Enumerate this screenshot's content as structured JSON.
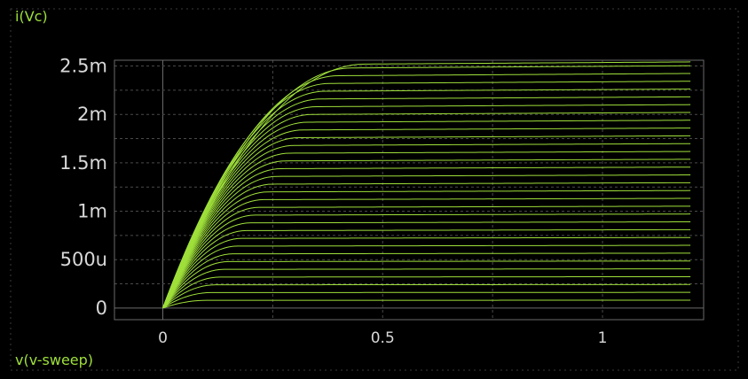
{
  "chart_data": {
    "type": "line",
    "ylabel": "i(Vc)",
    "xlabel": "v(v-sweep)",
    "xlim": [
      -0.11,
      1.23
    ],
    "ylim": [
      -0.00012,
      0.00256
    ],
    "x_ticks": [
      {
        "value": 0,
        "label": "0"
      },
      {
        "value": 0.5,
        "label": "0.5"
      },
      {
        "value": 1,
        "label": "1"
      }
    ],
    "y_ticks": [
      {
        "value": 0,
        "label": "0"
      },
      {
        "value": 0.0005,
        "label": "500u"
      },
      {
        "value": 0.001,
        "label": "1m"
      },
      {
        "value": 0.0015,
        "label": "1.5m"
      },
      {
        "value": 0.002,
        "label": "2m"
      },
      {
        "value": 0.0025,
        "label": "2.5m"
      }
    ],
    "grid": true,
    "x_range": [
      0,
      1.2
    ],
    "series_color": "#9fe03a",
    "series_description": "family of output curves; each curve rises from the origin and saturates at its level",
    "saturation_levels": [
      8e-05,
      0.00016,
      0.00024,
      0.00032,
      0.0004,
      0.00048,
      0.00056,
      0.00064,
      0.00072,
      0.0008,
      0.00088,
      0.00096,
      0.00104,
      0.00112,
      0.0012,
      0.00128,
      0.00136,
      0.00144,
      0.00152,
      0.0016,
      0.00168,
      0.00176,
      0.00184,
      0.00192,
      0.002,
      0.00208,
      0.00216,
      0.00224,
      0.00232,
      0.0024,
      0.00248,
      0.00252
    ],
    "knee_voltages": [
      0.1,
      0.11,
      0.12,
      0.13,
      0.14,
      0.15,
      0.16,
      0.17,
      0.18,
      0.19,
      0.2,
      0.21,
      0.22,
      0.23,
      0.24,
      0.25,
      0.26,
      0.27,
      0.28,
      0.29,
      0.3,
      0.31,
      0.32,
      0.33,
      0.34,
      0.35,
      0.36,
      0.37,
      0.38,
      0.4,
      0.43,
      0.46
    ]
  },
  "colors": {
    "background": "#000000",
    "trace": "#9fe03a",
    "grid": "#4a4a4a",
    "frame": "#6a6a6a",
    "text": "#d8d8d8",
    "axis_label": "#9fe03a"
  }
}
